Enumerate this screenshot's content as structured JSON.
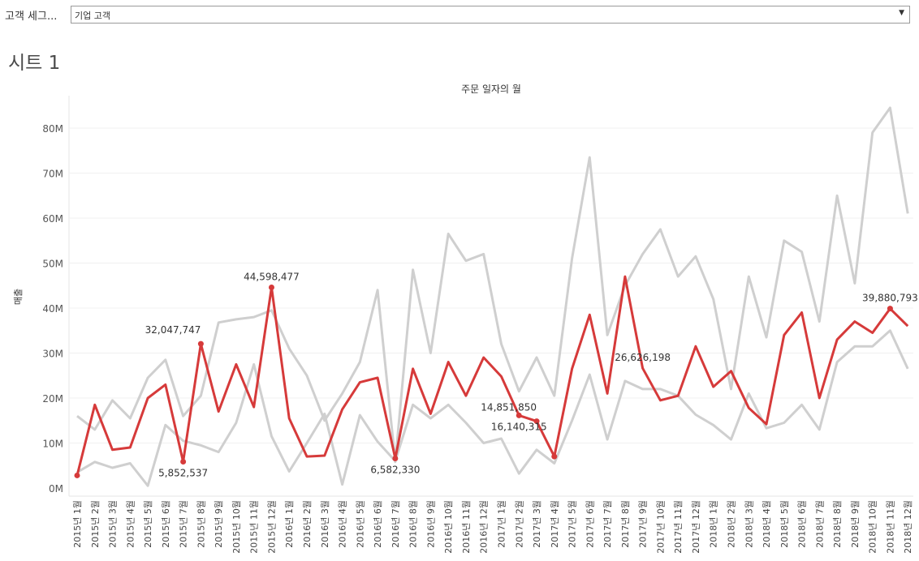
{
  "filter": {
    "label": "고객 세그...",
    "selected": "기업 고객"
  },
  "sheet": {
    "title": "시트 1"
  },
  "chart_data": {
    "type": "line",
    "title": "주문 일자의 월",
    "ylabel": "매출",
    "ylim": [
      0,
      88000000
    ],
    "yticks": [
      0,
      10000000,
      20000000,
      30000000,
      40000000,
      50000000,
      60000000,
      70000000,
      80000000
    ],
    "ytick_labels": [
      "0M",
      "10M",
      "20M",
      "30M",
      "40M",
      "50M",
      "60M",
      "70M",
      "80M"
    ],
    "grid": true,
    "categories": [
      "2015년 1월",
      "2015년 2월",
      "2015년 3월",
      "2015년 4월",
      "2015년 5월",
      "2015년 6월",
      "2015년 7월",
      "2015년 8월",
      "2015년 9월",
      "2015년 10월",
      "2015년 11월",
      "2015년 12월",
      "2016년 1월",
      "2016년 2월",
      "2016년 3월",
      "2016년 4월",
      "2016년 5월",
      "2016년 6월",
      "2016년 7월",
      "2016년 8월",
      "2016년 9월",
      "2016년 10월",
      "2016년 11월",
      "2016년 12월",
      "2017년 1월",
      "2017년 2월",
      "2017년 3월",
      "2017년 4월",
      "2017년 5월",
      "2017년 6월",
      "2017년 7월",
      "2017년 8월",
      "2017년 9월",
      "2017년 10월",
      "2017년 11월",
      "2017년 12월",
      "2018년 1월",
      "2018년 2월",
      "2018년 3월",
      "2018년 4월",
      "2018년 5월",
      "2018년 6월",
      "2018년 7월",
      "2018년 8월",
      "2018년 9월",
      "2018년 10월",
      "2018년 11월",
      "2018년 12월"
    ],
    "series": [
      {
        "color": "#cfcfcf",
        "values": [
          16000000,
          13000000,
          19500000,
          15500000,
          24500000,
          28500000,
          16000000,
          20500000,
          36800000,
          37500000,
          38000000,
          39500000,
          31000000,
          25000000,
          15000000,
          21000000,
          28000000,
          44000000,
          5800000,
          48500000,
          30000000,
          56500000,
          50500000,
          52000000,
          32000000,
          21500000,
          29000000,
          20500000,
          51000000,
          73500000,
          34000000,
          45000000,
          52000000,
          57500000,
          47000000,
          51500000,
          42000000,
          22000000,
          47000000,
          33500000,
          55000000,
          52500000,
          37000000,
          65000000,
          45500000,
          79000000,
          84500000,
          61000000
        ]
      },
      {
        "color": "#cfcfcf",
        "values": [
          3500000,
          5800000,
          4500000,
          5500000,
          500000,
          14000000,
          10500000,
          9500000,
          8000000,
          14500000,
          27500000,
          11500000,
          3700000,
          10000000,
          16500000,
          800000,
          16200000,
          10300000,
          6000000,
          18500000,
          15500000,
          18500000,
          14500000,
          10000000,
          11000000,
          3200000,
          8500000,
          5500000,
          15000000,
          25200000,
          10800000,
          23800000,
          22000000,
          22000000,
          20500000,
          16300000,
          14000000,
          10800000,
          21000000,
          13300000,
          14500000,
          18500000,
          13000000,
          28000000,
          31500000,
          31500000,
          35000000,
          26500000
        ]
      },
      {
        "color": "#d63a3a",
        "highlight": true,
        "values": [
          2800000,
          18500000,
          8500000,
          9000000,
          20000000,
          23000000,
          5852537,
          32047747,
          17000000,
          27500000,
          18000000,
          44598477,
          15500000,
          7000000,
          7200000,
          17500000,
          23500000,
          24500000,
          6582330,
          26500000,
          16500000,
          28000000,
          20500000,
          29000000,
          24800000,
          16140315,
          14851850,
          7000000,
          26500000,
          38500000,
          21000000,
          47000000,
          26626198,
          19500000,
          20500000,
          31500000,
          22500000,
          26000000,
          17800000,
          14200000,
          34000000,
          39000000,
          20000000,
          33000000,
          37000000,
          34500000,
          39880793,
          36000000
        ]
      }
    ],
    "data_labels": [
      {
        "index": 6,
        "text": "5,852,537",
        "pos": "below"
      },
      {
        "index": 7,
        "text": "32,047,747",
        "pos": "above-left"
      },
      {
        "index": 11,
        "text": "44,598,477",
        "pos": "above"
      },
      {
        "index": 18,
        "text": "6,582,330",
        "pos": "below"
      },
      {
        "index": 26,
        "text": "14,851,850",
        "pos": "above-left"
      },
      {
        "index": 25,
        "text": "16,140,315",
        "pos": "below"
      },
      {
        "index": 32,
        "text": "26,626,198",
        "pos": "above"
      },
      {
        "index": 46,
        "text": "39,880,793",
        "pos": "above"
      }
    ],
    "marked_indices": [
      0,
      6,
      7,
      11,
      18,
      25,
      26,
      27,
      46
    ]
  }
}
